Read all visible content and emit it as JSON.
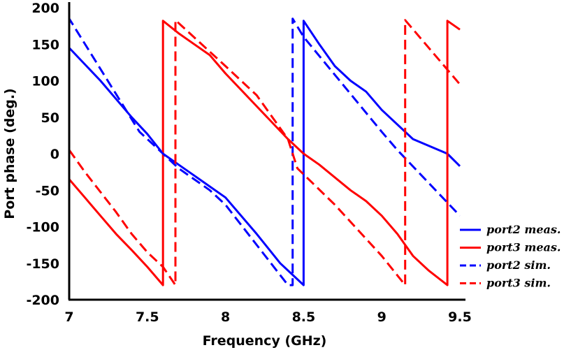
{
  "chart_data": {
    "type": "line",
    "xlabel": "Frequency (GHz)",
    "ylabel": "Port phase (deg.)",
    "xlim": [
      7,
      9.5
    ],
    "ylim": [
      -200,
      200
    ],
    "xticks": [
      "7",
      "7.5",
      "8",
      "8.5",
      "9",
      "9.5"
    ],
    "yticks": [
      "200",
      "150",
      "100",
      "50",
      "0",
      "-50",
      "-100",
      "-150",
      "-200"
    ],
    "grid": false,
    "legend_position": "bottom-right",
    "series": [
      {
        "name": "port2 meas.",
        "color": "#0000ff",
        "style": "solid",
        "points": [
          [
            7.0,
            -180
          ],
          [
            7.0,
            145
          ],
          [
            7.2,
            100
          ],
          [
            7.4,
            50
          ],
          [
            7.5,
            27
          ],
          [
            7.6,
            0
          ],
          [
            7.7,
            -15
          ],
          [
            7.8,
            -30
          ],
          [
            7.9,
            -45
          ],
          [
            8.0,
            -60
          ],
          [
            8.2,
            -110
          ],
          [
            8.35,
            -150
          ],
          [
            8.45,
            -170
          ],
          [
            8.5,
            -180
          ],
          [
            8.5,
            182
          ],
          [
            8.6,
            150
          ],
          [
            8.7,
            120
          ],
          [
            8.8,
            100
          ],
          [
            8.9,
            85
          ],
          [
            9.0,
            60
          ],
          [
            9.2,
            20
          ],
          [
            9.42,
            0
          ],
          [
            9.5,
            -17
          ]
        ]
      },
      {
        "name": "port3 meas.",
        "color": "#ff0000",
        "style": "solid",
        "points": [
          [
            7.0,
            -35
          ],
          [
            7.1,
            -60
          ],
          [
            7.2,
            -85
          ],
          [
            7.3,
            -110
          ],
          [
            7.4,
            -132
          ],
          [
            7.5,
            -155
          ],
          [
            7.6,
            -180
          ],
          [
            7.6,
            182
          ],
          [
            7.7,
            165
          ],
          [
            7.8,
            150
          ],
          [
            7.9,
            135
          ],
          [
            8.0,
            110
          ],
          [
            8.2,
            65
          ],
          [
            8.4,
            20
          ],
          [
            8.5,
            0
          ],
          [
            8.6,
            -15
          ],
          [
            8.8,
            -50
          ],
          [
            8.9,
            -65
          ],
          [
            9.0,
            -85
          ],
          [
            9.1,
            -110
          ],
          [
            9.2,
            -140
          ],
          [
            9.3,
            -160
          ],
          [
            9.42,
            -180
          ],
          [
            9.42,
            182
          ],
          [
            9.5,
            170
          ]
        ]
      },
      {
        "name": "port2 sim.",
        "color": "#0000ff",
        "style": "dashed",
        "points": [
          [
            7.0,
            -180
          ],
          [
            7.0,
            185
          ],
          [
            7.45,
            30
          ],
          [
            7.55,
            10
          ],
          [
            7.7,
            -20
          ],
          [
            7.9,
            -50
          ],
          [
            8.0,
            -70
          ],
          [
            8.4,
            -180
          ],
          [
            8.43,
            -180
          ],
          [
            8.43,
            185
          ],
          [
            8.5,
            160
          ],
          [
            9.0,
            30
          ],
          [
            9.1,
            5
          ],
          [
            9.5,
            -85
          ]
        ]
      },
      {
        "name": "port3 sim.",
        "color": "#ff0000",
        "style": "dashed",
        "points": [
          [
            7.0,
            5
          ],
          [
            7.1,
            -25
          ],
          [
            7.3,
            -80
          ],
          [
            7.4,
            -110
          ],
          [
            7.5,
            -135
          ],
          [
            7.6,
            -155
          ],
          [
            7.68,
            -180
          ],
          [
            7.68,
            183
          ],
          [
            8.0,
            120
          ],
          [
            8.2,
            80
          ],
          [
            8.4,
            20
          ],
          [
            8.46,
            -20
          ],
          [
            8.7,
            -70
          ],
          [
            9.0,
            -140
          ],
          [
            9.15,
            -180
          ],
          [
            9.15,
            183
          ],
          [
            9.5,
            95
          ]
        ]
      }
    ]
  }
}
